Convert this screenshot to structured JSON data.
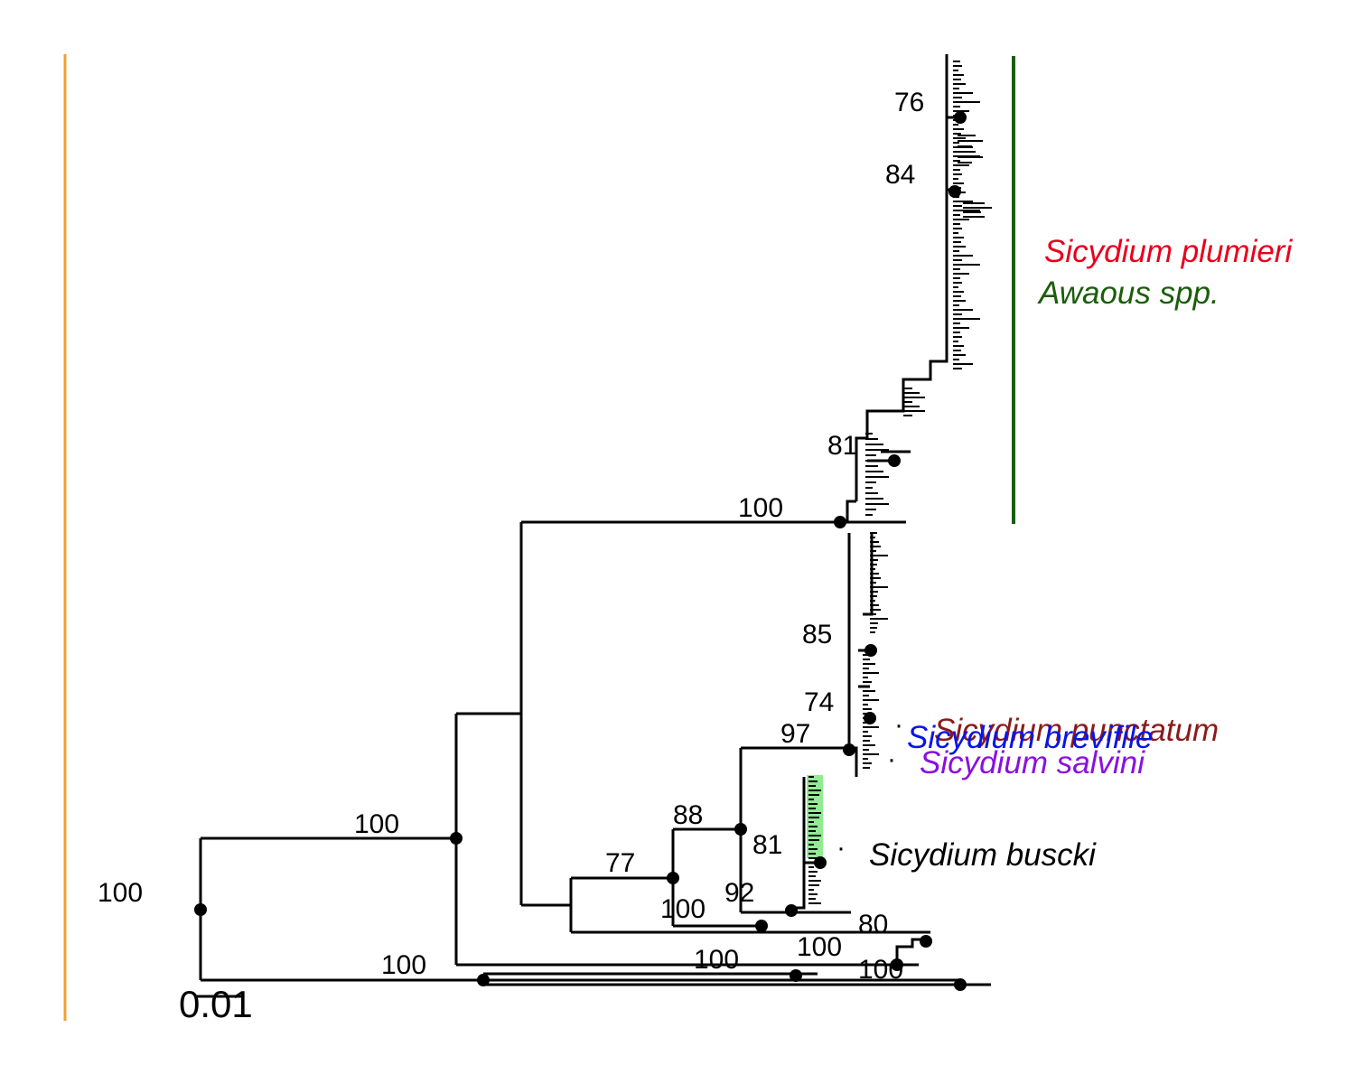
{
  "colors": {
    "branch": "#000000",
    "left_bar": "#f0a030",
    "awaous_bar": "#1a5e0a",
    "buscki_highlight": "#7fe87f"
  },
  "bootstrap": {
    "root": "100",
    "n1": "100",
    "n2": "100",
    "n3": "100",
    "n4": "77",
    "n5": "88",
    "n6": "100",
    "n7": "92",
    "n8": "97",
    "n9": "81",
    "n10": "80",
    "n11": "100",
    "n12": "100",
    "n13": "100",
    "n14": "85",
    "n15": "74",
    "n16": "81",
    "n17": "84",
    "n18": "76",
    "n19": "100"
  },
  "clades": {
    "plumieri": {
      "label": "Sicydium plumieri",
      "color": "#e8001c"
    },
    "awaous": {
      "label": "Awaous spp.",
      "color": "#1a5e0a"
    },
    "punctatum": {
      "label": "Sicydium punctatum",
      "color": "#8b1a1a"
    },
    "brevifile": {
      "label": "Sicydium brevifile",
      "color": "#0a14e8"
    },
    "salvini": {
      "label": "Sicydium salvini",
      "color": "#8a10e0"
    },
    "buscki": {
      "label": "Sicydium buscki",
      "color": "#000000"
    }
  },
  "scale": {
    "label": "0.01"
  }
}
